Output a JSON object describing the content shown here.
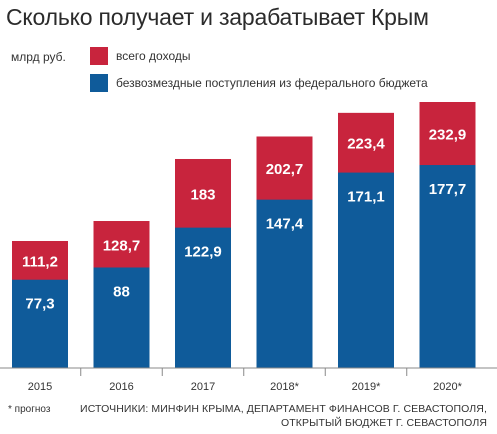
{
  "title": "Сколько получает и зарабатывает Крым",
  "unit_label": "млрд руб.",
  "colors": {
    "total": "#c8243d",
    "transfers": "#0f5b9a",
    "axis": "#888888",
    "text_light": "#ffffff",
    "text_dark": "#333333"
  },
  "chart_data": {
    "type": "bar",
    "stacked_overlap": true,
    "categories": [
      "2015",
      "2016",
      "2017",
      "2018*",
      "2019*",
      "2020*"
    ],
    "series": [
      {
        "name": "всего доходы",
        "values": [
          111.2,
          128.7,
          183,
          202.7,
          223.4,
          232.9
        ],
        "labels": [
          "111,2",
          "128,7",
          "183",
          "202,7",
          "223,4",
          "232,9"
        ]
      },
      {
        "name": "безвозмездные поступления из федерального бюджета",
        "values": [
          77.3,
          88,
          122.9,
          147.4,
          171.1,
          177.7
        ],
        "labels": [
          "77,3",
          "88",
          "122,9",
          "147,4",
          "171,1",
          "177,7"
        ]
      }
    ],
    "ylim": [
      0,
      232.9
    ],
    "grid": false,
    "legend_position": "top-left"
  },
  "footnote": "* прогноз",
  "sources": [
    "ИСТОЧНИКИ: МИНФИН КРЫМА, ДЕПАРТАМЕНТ ФИНАНСОВ Г. СЕВАСТОПОЛЯ,",
    "ОТКРЫТЫЙ БЮДЖЕТ Г. СЕВАСТОПОЛЯ"
  ]
}
